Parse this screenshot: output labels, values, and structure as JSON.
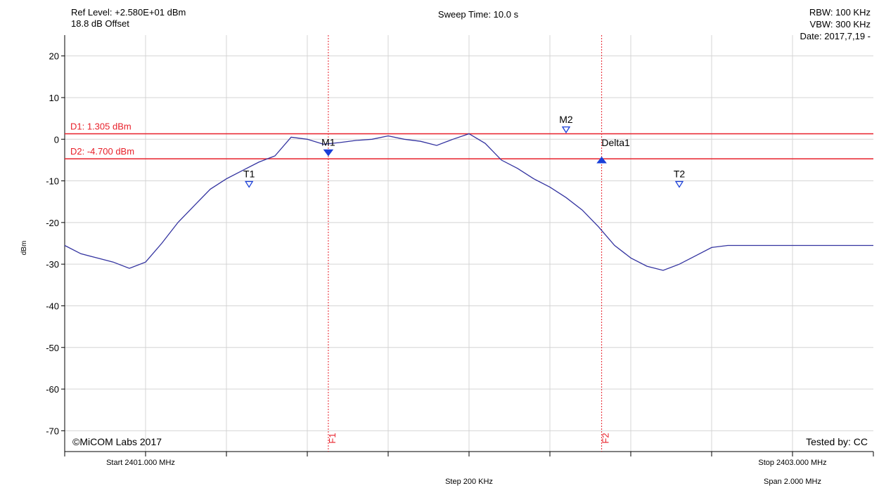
{
  "header": {
    "ref_level": "Ref Level: +2.580E+01 dBm",
    "offset": "18.8 dB Offset",
    "sweep_time": "Sweep Time: 10.0 s",
    "rbw": "RBW: 100 KHz",
    "vbw": "VBW: 300 KHz",
    "date": "Date: 2017,7,19 -"
  },
  "footer": {
    "start": "Start 2401.000 MHz",
    "stop": "Stop 2403.000 MHz",
    "step": "Step 200 KHz",
    "span": "Span 2.000 MHz",
    "copyright": "©MiCOM Labs 2017",
    "tested_by": "Tested by: CC"
  },
  "colors": {
    "trace": "#3333a0",
    "reference": "#e8202a",
    "marker": "#1a3fd8",
    "grid": "#d4d4d4",
    "axis": "#000000"
  },
  "chart_data": {
    "type": "line",
    "ylabel": "dBm",
    "xlim": [
      2401.0,
      2403.0
    ],
    "ylim": [
      -75,
      25
    ],
    "yticks": [
      20,
      10,
      0,
      -10,
      -20,
      -30,
      -40,
      -50,
      -60,
      -70
    ],
    "grid": true,
    "series": [
      {
        "x": [
          2401.0,
          2401.04,
          2401.08,
          2401.12,
          2401.16,
          2401.2,
          2401.24,
          2401.28,
          2401.32,
          2401.36,
          2401.4,
          2401.44,
          2401.48,
          2401.52,
          2401.56,
          2401.6,
          2401.64,
          2401.68,
          2401.72,
          2401.76,
          2401.8,
          2401.84,
          2401.88,
          2401.92,
          2401.96,
          2402.0,
          2402.04,
          2402.08,
          2402.12,
          2402.16,
          2402.2,
          2402.24,
          2402.28,
          2402.32,
          2402.36,
          2402.4,
          2402.44,
          2402.48,
          2402.52,
          2402.56,
          2402.6,
          2402.64,
          2402.68,
          2402.72,
          2402.76,
          2402.8,
          2402.84,
          2402.88,
          2402.92,
          2402.96,
          2403.0
        ],
        "y": [
          -25.5,
          -27.5,
          -28.5,
          -29.5,
          -31,
          -29.5,
          -25,
          -20,
          -16,
          -12,
          -9.5,
          -7.5,
          -5.5,
          -4,
          0.5,
          0,
          -1.2,
          -0.8,
          -0.3,
          0,
          0.8,
          0,
          -0.5,
          -1.5,
          0,
          1.3,
          -1,
          -5,
          -7,
          -9.5,
          -11.5,
          -14,
          -17,
          -21,
          -25.5,
          -28.5,
          -30.5,
          -31.5,
          -30,
          -28,
          -26,
          -25.5,
          -25.5,
          -25.5,
          -25.5,
          -25.5,
          -25.5,
          -25.5,
          -25.5,
          -25.5,
          -25.5
        ]
      }
    ],
    "reference_lines": [
      {
        "label": "D1: 1.305 dBm",
        "y": 1.305
      },
      {
        "label": "D2: -4.700 dBm",
        "y": -4.7
      }
    ],
    "frequency_lines": [
      {
        "label": "F1",
        "x": 2401.652
      },
      {
        "label": "F2",
        "x": 2402.328
      }
    ],
    "markers": [
      {
        "label": "T1",
        "x": 2401.456,
        "y": -11.5,
        "style": "open"
      },
      {
        "label": "M1",
        "x": 2401.652,
        "y": -3.9,
        "style": "filled"
      },
      {
        "label": "M2",
        "x": 2402.24,
        "y": 1.6,
        "style": "open"
      },
      {
        "label": "Delta1",
        "x": 2402.328,
        "y": -5.0,
        "style": "filled"
      },
      {
        "label": "T2",
        "x": 2402.52,
        "y": -11.5,
        "style": "open"
      }
    ]
  }
}
